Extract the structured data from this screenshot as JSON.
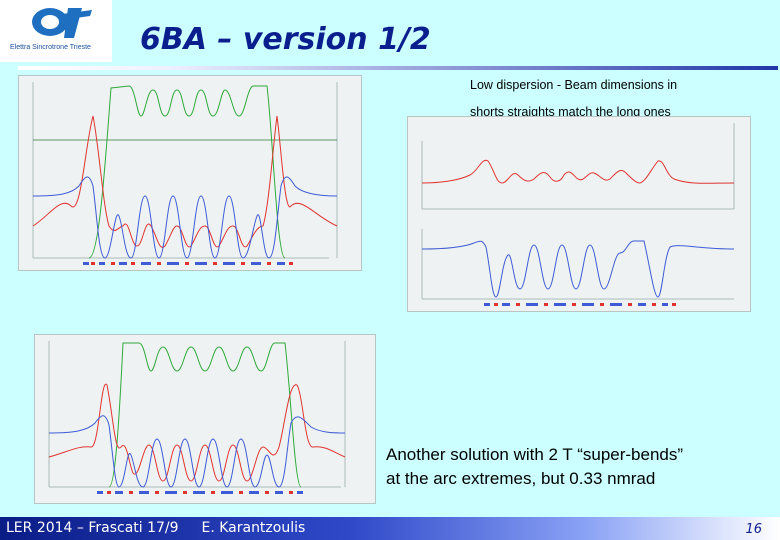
{
  "logo": {
    "name": "elettra-logo-icon",
    "text": "Elettra Sincrotrone Trieste"
  },
  "title": "6BA – version 1/2",
  "caption_top": {
    "line1": "Low dispersion - Beam dimensions in",
    "line2": "shorts straights match  the long ones"
  },
  "caption_bottom": {
    "line1": "Another solution with 2 T “super-bends”",
    "line2": "at the arc extremes, but 0.33 nmrad"
  },
  "footer": {
    "left": "LER 2014 – Frascati 17/9",
    "author": "E. Karantzoulis"
  },
  "page_number": "16",
  "colors": {
    "background": "#ccffff",
    "title": "#0b1e8e",
    "beta_x": "#e0352f",
    "beta_y": "#3f5bd6",
    "dispersion": "#2faa3a"
  }
}
